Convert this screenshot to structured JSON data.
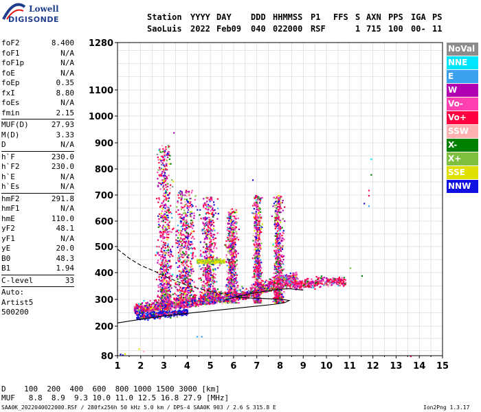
{
  "logo": {
    "line1": "Lowell",
    "line2": "DIGISONDE"
  },
  "header": {
    "labels_station": "Station",
    "labels_yyyy": "YYYY",
    "labels_day": "DAY",
    "labels_ddd": "DDD",
    "labels_hhmmss": "HHMMSS",
    "labels_p1": "P1",
    "labels_ffs": "FFS",
    "labels_s": "S",
    "labels_axn": "AXN",
    "labels_pps": "PPS",
    "labels_iga": "IGA",
    "labels_ps": "PS",
    "station": "SaoLuis",
    "year": "2022",
    "day": "Feb09",
    "ddd": "040",
    "hhmmss": "022000",
    "p1": "RSF",
    "s": "1",
    "axn": "715",
    "pps": "100",
    "iga": "00-",
    "ps": "11"
  },
  "params_a": [
    {
      "k": "foF2",
      "v": "8.400"
    },
    {
      "k": "foF1",
      "v": "N/A"
    },
    {
      "k": "foF1p",
      "v": "N/A"
    },
    {
      "k": "foE",
      "v": "N/A"
    },
    {
      "k": "foEp",
      "v": "0.35"
    },
    {
      "k": "fxI",
      "v": "8.80"
    },
    {
      "k": "foEs",
      "v": "N/A"
    },
    {
      "k": "fmin",
      "v": "2.15"
    }
  ],
  "params_b": [
    {
      "k": "MUF(D)",
      "v": "27.93"
    },
    {
      "k": "M(D)",
      "v": "3.33"
    },
    {
      "k": "D",
      "v": "N/A"
    }
  ],
  "params_c": [
    {
      "k": "h`F",
      "v": "230.0"
    },
    {
      "k": "h`F2",
      "v": "230.0"
    },
    {
      "k": "h`E",
      "v": "N/A"
    },
    {
      "k": "h`Es",
      "v": "N/A"
    }
  ],
  "params_d": [
    {
      "k": "hmF2",
      "v": "291.8"
    },
    {
      "k": "hmF1",
      "v": "N/A"
    },
    {
      "k": "hmE",
      "v": "110.0"
    },
    {
      "k": "yF2",
      "v": "48.1"
    },
    {
      "k": "yF1",
      "v": "N/A"
    },
    {
      "k": "yE",
      "v": "20.0"
    },
    {
      "k": "B0",
      "v": "48.3"
    },
    {
      "k": "B1",
      "v": "1.94"
    }
  ],
  "params_e": [
    {
      "k": "C-level",
      "v": "33"
    }
  ],
  "auto": {
    "line1": "Auto:",
    "line2": "Artist5",
    "line3": "500200"
  },
  "legend": [
    {
      "label": "NoVal",
      "color": "#8c8c8c"
    },
    {
      "label": "NNE",
      "color": "#00e6ff"
    },
    {
      "label": "E",
      "color": "#3aa0f0"
    },
    {
      "label": "W",
      "color": "#b000b0"
    },
    {
      "label": "Vo-",
      "color": "#ff40b0"
    },
    {
      "label": "Vo+",
      "color": "#ff0040"
    },
    {
      "label": "SSW",
      "color": "#ffb0b0"
    },
    {
      "label": "X-",
      "color": "#008000"
    },
    {
      "label": "X+",
      "color": "#80c040"
    },
    {
      "label": "SSE",
      "color": "#e0e000"
    },
    {
      "label": "NNW",
      "color": "#1010e0"
    }
  ],
  "bottom": {
    "d_row": "D    100  200  400  600  800 1000 1500 3000 [km]",
    "muf_row": "MUF   8.8  8.9  9.3 10.0 11.0 12.5 16.8 27.9 [MHz]"
  },
  "footer": {
    "left": "SAA0K_2022040022000.RSF / 280fx256h 50 kHz 5.0 km / DPS-4 SAA0K 903 / 2.6 S 315.8 E",
    "right": "Ion2Png 1.3.17"
  },
  "chart_data": {
    "type": "scatter",
    "xlim": [
      1,
      15
    ],
    "ylim": [
      80,
      1280
    ],
    "x_ticks": [
      "1",
      "2",
      "3",
      "4",
      "5",
      "6",
      "7",
      "8",
      "9",
      "10",
      "11",
      "12",
      "13",
      "14",
      "15"
    ],
    "y_ticks": [
      "80",
      "200",
      "300",
      "400",
      "500",
      "600",
      "700",
      "800",
      "900",
      "1000",
      "1100",
      "1280"
    ],
    "grid": true,
    "y_scale": "nonlinear"
  }
}
